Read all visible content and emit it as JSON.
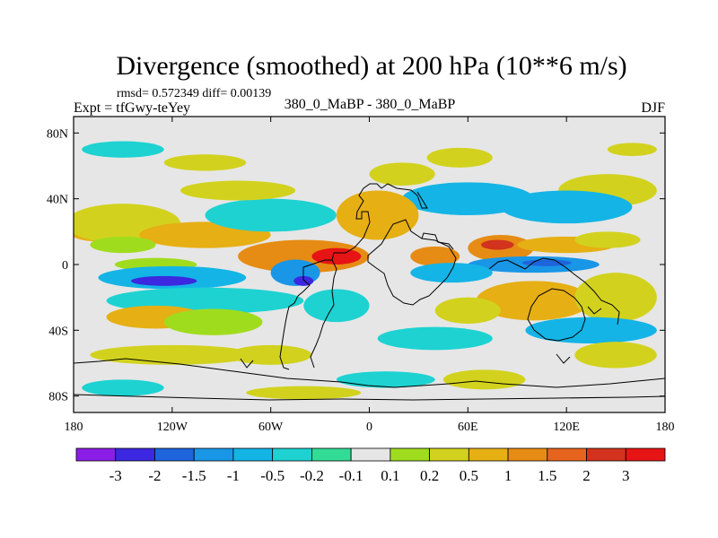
{
  "chart_data": {
    "type": "heatmap",
    "title": "Divergence (smoothed) at 200 hPa (10**6 m/s)",
    "stats_text": "rmsd= 0.572349 diff= 0.00139",
    "experiment_label": "Expt = tfGwy-teYey",
    "comparison_label": "380_0_MaBP - 380_0_MaBP",
    "season_label": "DJF",
    "xlim": [
      -180,
      180
    ],
    "ylim": [
      -90,
      90
    ],
    "x_ticks": [
      {
        "value": -180,
        "label": "180"
      },
      {
        "value": -120,
        "label": "120W"
      },
      {
        "value": -60,
        "label": "60W"
      },
      {
        "value": 0,
        "label": "0"
      },
      {
        "value": 60,
        "label": "60E"
      },
      {
        "value": 120,
        "label": "120E"
      },
      {
        "value": 180,
        "label": "180"
      }
    ],
    "y_ticks": [
      {
        "value": 80,
        "label": "80N"
      },
      {
        "value": 40,
        "label": "40N"
      },
      {
        "value": 0,
        "label": "0"
      },
      {
        "value": -40,
        "label": "40S"
      },
      {
        "value": -80,
        "label": "80S"
      }
    ],
    "contour_levels": [
      "-3",
      "-2",
      "-1.5",
      "-1",
      "-0.5",
      "-0.2",
      "-0.1",
      "0.1",
      "0.2",
      "0.5",
      "1",
      "1.5",
      "2",
      "3"
    ],
    "colors": [
      "#8a1ee6",
      "#3c28e0",
      "#1e64dc",
      "#1996e6",
      "#14b4e6",
      "#1ed2d2",
      "#32dc96",
      "#e6e6e6",
      "#a0dc1e",
      "#d2d21e",
      "#e6af14",
      "#e68c14",
      "#e6641e",
      "#d2321e",
      "#e61414"
    ],
    "pattern_blobs": [
      {
        "lon": -165,
        "lat": 20,
        "rlon": 18,
        "rlat": 6,
        "bin": 10
      },
      {
        "lon": -150,
        "lat": 25,
        "rlon": 35,
        "rlat": 12,
        "bin": 9
      },
      {
        "lon": -100,
        "lat": 18,
        "rlon": 40,
        "rlat": 8,
        "bin": 10
      },
      {
        "lon": -40,
        "lat": 5,
        "rlon": 40,
        "rlat": 10,
        "bin": 11
      },
      {
        "lon": -20,
        "lat": 5,
        "rlon": 15,
        "rlat": 5,
        "bin": 14
      },
      {
        "lon": -130,
        "lat": 0,
        "rlon": 25,
        "rlat": 4,
        "bin": 8
      },
      {
        "lon": -150,
        "lat": 12,
        "rlon": 20,
        "rlat": 5,
        "bin": 8
      },
      {
        "lon": -120,
        "lat": -8,
        "rlon": 45,
        "rlat": 7,
        "bin": 4
      },
      {
        "lon": -125,
        "lat": -10,
        "rlon": 20,
        "rlat": 3,
        "bin": 1
      },
      {
        "lon": -100,
        "lat": -22,
        "rlon": 60,
        "rlat": 8,
        "bin": 5
      },
      {
        "lon": -130,
        "lat": -32,
        "rlon": 30,
        "rlat": 7,
        "bin": 10
      },
      {
        "lon": -95,
        "lat": -35,
        "rlon": 30,
        "rlat": 8,
        "bin": 8
      },
      {
        "lon": -45,
        "lat": -5,
        "rlon": 15,
        "rlat": 8,
        "bin": 3
      },
      {
        "lon": -40,
        "lat": -10,
        "rlon": 6,
        "rlat": 3,
        "bin": 1
      },
      {
        "lon": -20,
        "lat": -25,
        "rlon": 20,
        "rlat": 10,
        "bin": 5
      },
      {
        "lon": -60,
        "lat": 30,
        "rlon": 40,
        "rlat": 10,
        "bin": 5
      },
      {
        "lon": -80,
        "lat": 45,
        "rlon": 35,
        "rlat": 6,
        "bin": 9
      },
      {
        "lon": -100,
        "lat": 62,
        "rlon": 25,
        "rlat": 5,
        "bin": 9
      },
      {
        "lon": 20,
        "lat": 55,
        "rlon": 20,
        "rlat": 7,
        "bin": 9
      },
      {
        "lon": 55,
        "lat": 65,
        "rlon": 20,
        "rlat": 6,
        "bin": 9
      },
      {
        "lon": 145,
        "lat": 45,
        "rlon": 30,
        "rlat": 10,
        "bin": 9
      },
      {
        "lon": 60,
        "lat": 40,
        "rlon": 40,
        "rlat": 10,
        "bin": 4
      },
      {
        "lon": 120,
        "lat": 35,
        "rlon": 40,
        "rlat": 10,
        "bin": 4
      },
      {
        "lon": 5,
        "lat": 30,
        "rlon": 25,
        "rlat": 15,
        "bin": 10
      },
      {
        "lon": 40,
        "lat": 5,
        "rlon": 15,
        "rlat": 6,
        "bin": 11
      },
      {
        "lon": 80,
        "lat": 10,
        "rlon": 20,
        "rlat": 8,
        "bin": 11
      },
      {
        "lon": 78,
        "lat": 12,
        "rlon": 10,
        "rlat": 3,
        "bin": 13
      },
      {
        "lon": 120,
        "lat": 12,
        "rlon": 30,
        "rlat": 5,
        "bin": 10
      },
      {
        "lon": 145,
        "lat": 15,
        "rlon": 20,
        "rlat": 5,
        "bin": 9
      },
      {
        "lon": 100,
        "lat": 0,
        "rlon": 40,
        "rlat": 5,
        "bin": 3
      },
      {
        "lon": 108,
        "lat": 1,
        "rlon": 15,
        "rlat": 2,
        "bin": 2
      },
      {
        "lon": 50,
        "lat": -5,
        "rlon": 25,
        "rlat": 6,
        "bin": 4
      },
      {
        "lon": 100,
        "lat": -22,
        "rlon": 35,
        "rlat": 12,
        "bin": 10
      },
      {
        "lon": 60,
        "lat": -28,
        "rlon": 20,
        "rlat": 8,
        "bin": 9
      },
      {
        "lon": 150,
        "lat": -20,
        "rlon": 25,
        "rlat": 15,
        "bin": 9
      },
      {
        "lon": 135,
        "lat": -40,
        "rlon": 40,
        "rlat": 8,
        "bin": 4
      },
      {
        "lon": 150,
        "lat": -55,
        "rlon": 25,
        "rlat": 8,
        "bin": 9
      },
      {
        "lon": 40,
        "lat": -45,
        "rlon": 35,
        "rlat": 7,
        "bin": 5
      },
      {
        "lon": -120,
        "lat": -55,
        "rlon": 50,
        "rlat": 6,
        "bin": 9
      },
      {
        "lon": -60,
        "lat": -55,
        "rlon": 25,
        "rlat": 6,
        "bin": 9
      },
      {
        "lon": 10,
        "lat": -70,
        "rlon": 30,
        "rlat": 5,
        "bin": 5
      },
      {
        "lon": 70,
        "lat": -70,
        "rlon": 25,
        "rlat": 6,
        "bin": 9
      },
      {
        "lon": -150,
        "lat": -75,
        "rlon": 25,
        "rlat": 5,
        "bin": 5
      },
      {
        "lon": -40,
        "lat": -78,
        "rlon": 35,
        "rlat": 4,
        "bin": 9
      },
      {
        "lon": -150,
        "lat": 70,
        "rlon": 25,
        "rlat": 5,
        "bin": 5
      },
      {
        "lon": 160,
        "lat": 70,
        "rlon": 15,
        "rlat": 4,
        "bin": 9
      }
    ]
  }
}
